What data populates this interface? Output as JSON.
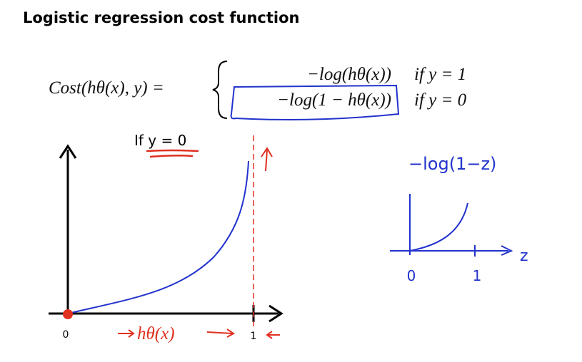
{
  "slide": {
    "title": "Logistic regression cost function",
    "formula": {
      "lhs": "Cost(hθ(x), y) =",
      "cases": [
        {
          "expr": "−log(hθ(x))",
          "cond": "if y = 1"
        },
        {
          "expr": "−log(1 − hθ(x))",
          "cond": "if y = 0"
        }
      ]
    },
    "plot": {
      "label": "If y = 0",
      "x_tick_0": "0",
      "x_tick_1": "1",
      "x_label": "hθ(x)"
    },
    "sketch": {
      "label": "−log(1−z)",
      "tick_0": "0",
      "tick_1": "1",
      "axis": "z"
    }
  }
}
